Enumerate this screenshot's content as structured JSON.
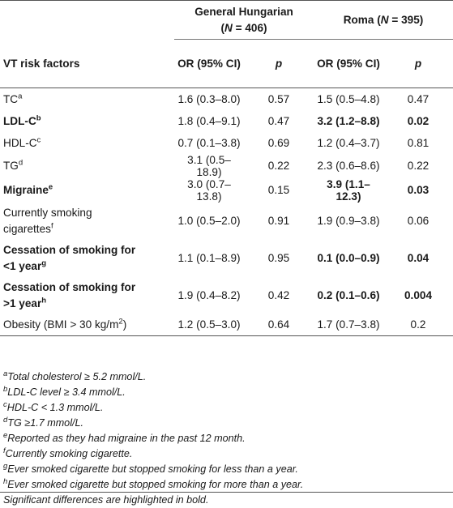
{
  "headers": {
    "group1": "General Hungarian",
    "group1_n_prefix": "(",
    "group1_n_var": "N",
    "group1_n_val": " = 406)",
    "group2": "Roma (",
    "group2_n_var": "N",
    "group2_n_val": " = 395)",
    "row_label": "VT risk factors",
    "or_ci": "OR (95% CI)",
    "p": "p"
  },
  "rows": [
    {
      "label": "TC",
      "sup": "a",
      "g_or": "1.6 (0.3–8.0)",
      "g_p": "0.57",
      "r_or": "1.5 (0.5–4.8)",
      "r_p": "0.47",
      "bold": false
    },
    {
      "label": "LDL-C",
      "sup": "b",
      "g_or": "1.8 (0.4–9.1)",
      "g_p": "0.47",
      "r_or": "3.2 (1.2–8.8)",
      "r_p": "0.02",
      "bold": true
    },
    {
      "label": "HDL-C",
      "sup": "c",
      "g_or": "0.7 (0.1–3.8)",
      "g_p": "0.69",
      "r_or": "1.2 (0.4–3.7)",
      "r_p": "0.81",
      "bold": false
    },
    {
      "label": "TG",
      "sup": "d",
      "g_or": "3.1 (0.5–18.9)",
      "g_p": "0.22",
      "r_or": "2.3 (0.6–8.6)",
      "r_p": "0.22",
      "bold": false
    },
    {
      "label": "Migraine",
      "sup": "e",
      "g_or": "3.0 (0.7–13.8)",
      "g_p": "0.15",
      "r_or": "3.9 (1.1–12.3)",
      "r_p": "0.03",
      "bold": true
    },
    {
      "label_line1": "Currently smoking",
      "label_line2": "cigarettes",
      "sup": "f",
      "g_or": "1.0 (0.5–2.0)",
      "g_p": "0.91",
      "r_or": "1.9 (0.9–3.8)",
      "r_p": "0.06",
      "bold": false
    },
    {
      "label_line1": "Cessation of smoking for",
      "label_line2": "<1 year",
      "sup": "g",
      "g_or": "1.1 (0.1–8.9)",
      "g_p": "0.95",
      "r_or": "0.1 (0.0–0.9)",
      "r_p": "0.04",
      "bold": true
    },
    {
      "label_line1": "Cessation of smoking for",
      "label_line2": ">1 year",
      "sup": "h",
      "g_or": "1.9 (0.4–8.2)",
      "g_p": "0.42",
      "r_or": "0.2 (0.1–0.6)",
      "r_p": "0.004",
      "bold": true
    },
    {
      "label": "Obesity (BMI > 30 kg/m",
      "sup": "2",
      "label_end": ")",
      "g_or": "1.2 (0.5–3.0)",
      "g_p": "0.64",
      "r_or": "1.7 (0.7–3.8)",
      "r_p": "0.2",
      "bold": false
    }
  ],
  "footnotes": [
    {
      "mark": "a",
      "text": "Total cholesterol ≥ 5.2 mmol/L."
    },
    {
      "mark": "b",
      "text": "LDL-C level ≥ 3.4 mmol/L."
    },
    {
      "mark": "c",
      "text": "HDL-C < 1.3 mmol/L."
    },
    {
      "mark": "d",
      "text": "TG ≥1.7 mmol/L."
    },
    {
      "mark": "e",
      "text": "Reported as they had migraine in the past 12 month."
    },
    {
      "mark": "f",
      "text": "Currently smoking cigarette."
    },
    {
      "mark": "g",
      "text": "Ever smoked cigarette but stopped smoking for less than a year."
    },
    {
      "mark": "h",
      "text": "Ever smoked cigarette but stopped smoking for more than a year."
    }
  ],
  "note": "Significant differences are highlighted in bold."
}
